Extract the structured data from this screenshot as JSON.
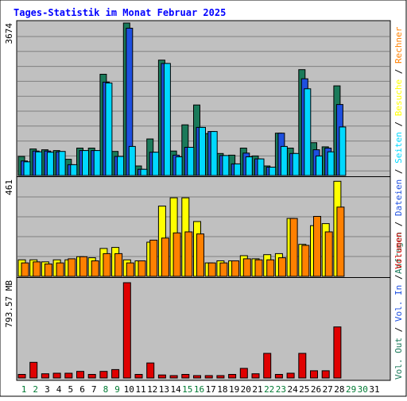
{
  "chart_data": {
    "type": "bar",
    "title": "Tages-Statistik im Monat Februar 2025",
    "categories": [
      "1",
      "2",
      "3",
      "4",
      "5",
      "6",
      "7",
      "8",
      "9",
      "10",
      "11",
      "12",
      "13",
      "14",
      "15",
      "16",
      "17",
      "18",
      "19",
      "20",
      "21",
      "22",
      "23",
      "24",
      "25",
      "26",
      "27",
      "28",
      "29",
      "30",
      "31"
    ],
    "weekend_days": [
      "1",
      "2",
      "8",
      "9",
      "15",
      "16",
      "22",
      "23",
      "29",
      "30"
    ],
    "grid": true,
    "panels": [
      {
        "id": "requests",
        "max_label": "3674",
        "ymax": 3674,
        "series": [
          {
            "name": "Anfragen",
            "color": "#1a7a5a",
            "values": [
              460,
              640,
              620,
              600,
              390,
              660,
              660,
              2440,
              580,
              3674,
              230,
              880,
              2780,
              590,
              1220,
              1700,
              1010,
              530,
              490,
              660,
              470,
              230,
              1020,
              660,
              2550,
              790,
              690,
              2160,
              0,
              0,
              0
            ]
          },
          {
            "name": "Dateien",
            "color": "#1e50e0",
            "values": [
              350,
              590,
              590,
              570,
              260,
              600,
              600,
              2250,
              460,
              3550,
              150,
              560,
              2700,
              490,
              680,
              1160,
              1060,
              480,
              280,
              540,
              400,
              200,
              1020,
              530,
              2330,
              620,
              660,
              1710,
              0,
              0,
              0
            ]
          },
          {
            "name": "Seiten",
            "color": "#00d8ff",
            "values": [
              330,
              570,
              560,
              580,
              260,
              600,
              600,
              2230,
              460,
              700,
              150,
              560,
              2700,
              450,
              680,
              1160,
              1060,
              480,
              280,
              450,
              400,
              200,
              700,
              530,
              2090,
              470,
              570,
              1170,
              0,
              0,
              0
            ]
          }
        ]
      },
      {
        "id": "visits",
        "max_label": "461",
        "ymax": 461,
        "series": [
          {
            "name": "Besuche",
            "color": "#ffff00",
            "values": [
              80,
              80,
              70,
              80,
              80,
              95,
              90,
              135,
              140,
              80,
              75,
              165,
              340,
              380,
              380,
              265,
              65,
              75,
              75,
              100,
              85,
              105,
              110,
              280,
              155,
              245,
              255,
              460,
              0,
              0,
              0
            ]
          },
          {
            "name": "Rechner",
            "color": "#ff8000",
            "values": [
              65,
              70,
              60,
              65,
              85,
              95,
              75,
              110,
              110,
              65,
              75,
              175,
              185,
              210,
              215,
              205,
              65,
              65,
              75,
              85,
              80,
              80,
              90,
              280,
              150,
              290,
              215,
              335,
              0,
              0,
              0
            ]
          }
        ]
      },
      {
        "id": "volume",
        "max_label": "793.57 MB",
        "ymax": 793.57,
        "series": [
          {
            "name": "Volumen",
            "color": "#e00000",
            "values": [
              30,
              130,
              35,
              40,
              40,
              55,
              30,
              55,
              70,
              793.57,
              30,
              125,
              25,
              20,
              30,
              20,
              20,
              20,
              30,
              80,
              35,
              205,
              30,
              40,
              205,
              60,
              60,
              425,
              0,
              0,
              0
            ]
          }
        ]
      }
    ],
    "side_legends": [
      [
        "Anfragen",
        "Dateien",
        "Seiten",
        "Besuche",
        "Rechner"
      ],
      [
        "Vol. Out",
        "Vol. In",
        "Volumen"
      ]
    ],
    "legend_colors": {
      "Anfragen": "#1a7a5a",
      "Dateien": "#1e50e0",
      "Seiten": "#00d8ff",
      "Besuche": "#ffff00",
      "Rechner": "#ff8000",
      "Vol. Out": "#1a7a5a",
      "Vol. In": "#1e50e0",
      "Volumen": "#e00000"
    },
    "colors": {
      "title": "#0000ff",
      "background": "#c0c0c0",
      "weekday_label": "#000000",
      "weekend_label": "#007a33",
      "separator": "#000000"
    }
  }
}
